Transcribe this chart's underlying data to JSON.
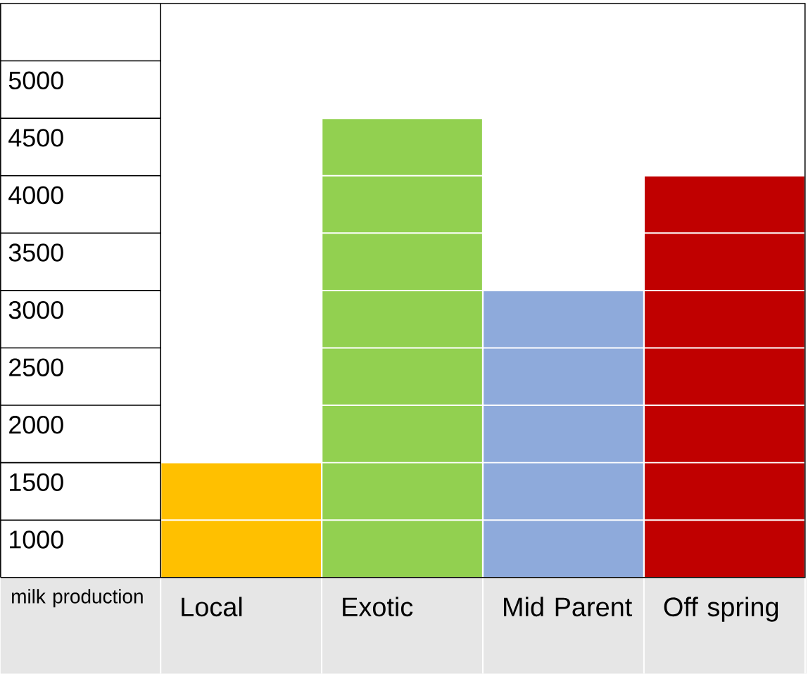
{
  "chart_data": {
    "type": "bar",
    "xlabel": "milk production",
    "categories": [
      "Local",
      "Exotic",
      "Mid Parent",
      "Off spring"
    ],
    "values": [
      1500,
      4500,
      3000,
      4000
    ],
    "colors": [
      "#ffc000",
      "#92d050",
      "#8eaadb",
      "#c00000"
    ],
    "ylim": [
      500,
      5500
    ],
    "yticks": [
      1000,
      1500,
      2000,
      2500,
      3000,
      3500,
      4000,
      4500,
      5000
    ],
    "grid": "y"
  }
}
